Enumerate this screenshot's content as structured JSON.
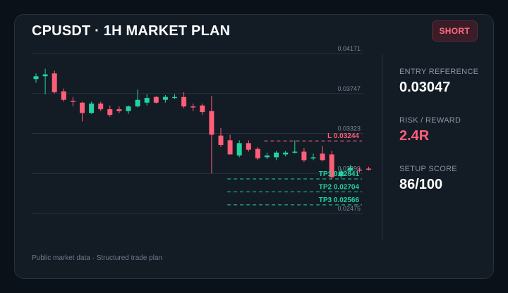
{
  "header": {
    "title": "CPUSDT · 1H MARKET PLAN",
    "badge": "SHORT"
  },
  "metrics": [
    {
      "label": "ENTRY REFERENCE",
      "value": "0.03047",
      "color": "#ffffff"
    },
    {
      "label": "RISK / REWARD",
      "value": "2.4R",
      "color": "#ff5e78"
    },
    {
      "label": "SETUP SCORE",
      "value": "86/100",
      "color": "#ffffff"
    }
  ],
  "footer": "Public market data · Structured trade plan",
  "colors": {
    "up": "#22d3a0",
    "down": "#ff5e78",
    "grid": "#263342",
    "tick": "#7c8898"
  },
  "chart_data": {
    "type": "candlestick",
    "y_ticks": [
      "0.04171",
      "0.03747",
      "0.03323",
      "0.02899",
      "0.02475"
    ],
    "ylim": [
      0.02475,
      0.04171
    ],
    "candles": [
      {
        "o": 0.039,
        "h": 0.0396,
        "l": 0.0386,
        "c": 0.0393
      },
      {
        "o": 0.0393,
        "h": 0.0401,
        "l": 0.0374,
        "c": 0.0395
      },
      {
        "o": 0.0396,
        "h": 0.0399,
        "l": 0.0375,
        "c": 0.0376
      },
      {
        "o": 0.0377,
        "h": 0.038,
        "l": 0.0366,
        "c": 0.0368
      },
      {
        "o": 0.0367,
        "h": 0.0371,
        "l": 0.0361,
        "c": 0.0366
      },
      {
        "o": 0.0365,
        "h": 0.0366,
        "l": 0.0345,
        "c": 0.0354
      },
      {
        "o": 0.0354,
        "h": 0.0366,
        "l": 0.0353,
        "c": 0.0364
      },
      {
        "o": 0.0364,
        "h": 0.0366,
        "l": 0.0356,
        "c": 0.0358
      },
      {
        "o": 0.0358,
        "h": 0.0362,
        "l": 0.035,
        "c": 0.0352
      },
      {
        "o": 0.0358,
        "h": 0.0361,
        "l": 0.0354,
        "c": 0.0356
      },
      {
        "o": 0.0356,
        "h": 0.0362,
        "l": 0.0353,
        "c": 0.0361
      },
      {
        "o": 0.0361,
        "h": 0.0379,
        "l": 0.036,
        "c": 0.0368
      },
      {
        "o": 0.0365,
        "h": 0.0374,
        "l": 0.0362,
        "c": 0.037
      },
      {
        "o": 0.0371,
        "h": 0.0372,
        "l": 0.0364,
        "c": 0.0365
      },
      {
        "o": 0.0368,
        "h": 0.0373,
        "l": 0.0365,
        "c": 0.0371
      },
      {
        "o": 0.037,
        "h": 0.0374,
        "l": 0.0369,
        "c": 0.0371
      },
      {
        "o": 0.0371,
        "h": 0.0376,
        "l": 0.0359,
        "c": 0.0361
      },
      {
        "o": 0.0361,
        "h": 0.0364,
        "l": 0.0356,
        "c": 0.036
      },
      {
        "o": 0.0362,
        "h": 0.0364,
        "l": 0.0352,
        "c": 0.0355
      },
      {
        "o": 0.0356,
        "h": 0.0372,
        "l": 0.029,
        "c": 0.0331
      },
      {
        "o": 0.033,
        "h": 0.0338,
        "l": 0.0318,
        "c": 0.032
      },
      {
        "o": 0.0325,
        "h": 0.0331,
        "l": 0.031,
        "c": 0.031
      },
      {
        "o": 0.0309,
        "h": 0.0325,
        "l": 0.0307,
        "c": 0.0322
      },
      {
        "o": 0.0322,
        "h": 0.0325,
        "l": 0.0313,
        "c": 0.0315
      },
      {
        "o": 0.0316,
        "h": 0.0318,
        "l": 0.0304,
        "c": 0.0306
      },
      {
        "o": 0.0307,
        "h": 0.0312,
        "l": 0.0305,
        "c": 0.0309
      },
      {
        "o": 0.0307,
        "h": 0.0314,
        "l": 0.0304,
        "c": 0.0312
      },
      {
        "o": 0.031,
        "h": 0.0314,
        "l": 0.0308,
        "c": 0.0312
      },
      {
        "o": 0.0312,
        "h": 0.0325,
        "l": 0.0311,
        "c": 0.0313
      },
      {
        "o": 0.0313,
        "h": 0.0317,
        "l": 0.0302,
        "c": 0.0304
      },
      {
        "o": 0.0306,
        "h": 0.0311,
        "l": 0.0304,
        "c": 0.0307
      },
      {
        "o": 0.0311,
        "h": 0.0319,
        "l": 0.0303,
        "c": 0.0304
      },
      {
        "o": 0.031,
        "h": 0.0314,
        "l": 0.0284,
        "c": 0.0286
      },
      {
        "o": 0.0287,
        "h": 0.0295,
        "l": 0.0285,
        "c": 0.0292
      },
      {
        "o": 0.0293,
        "h": 0.0299,
        "l": 0.029,
        "c": 0.0296
      },
      {
        "o": 0.0294,
        "h": 0.0296,
        "l": 0.0291,
        "c": 0.0293
      },
      {
        "o": 0.0295,
        "h": 0.0297,
        "l": 0.0293,
        "c": 0.0294
      }
    ],
    "levels": [
      {
        "label": "L 0.03244",
        "value": 0.03244,
        "color": "#ff5e78",
        "start": 25
      },
      {
        "label": "TP1 0.02841",
        "value": 0.02841,
        "color": "#22d3a0",
        "start": 21
      },
      {
        "label": "TP2 0.02704",
        "value": 0.02704,
        "color": "#22d3a0",
        "start": 21
      },
      {
        "label": "TP3 0.02566",
        "value": 0.02566,
        "color": "#22d3a0",
        "start": 21
      }
    ]
  }
}
